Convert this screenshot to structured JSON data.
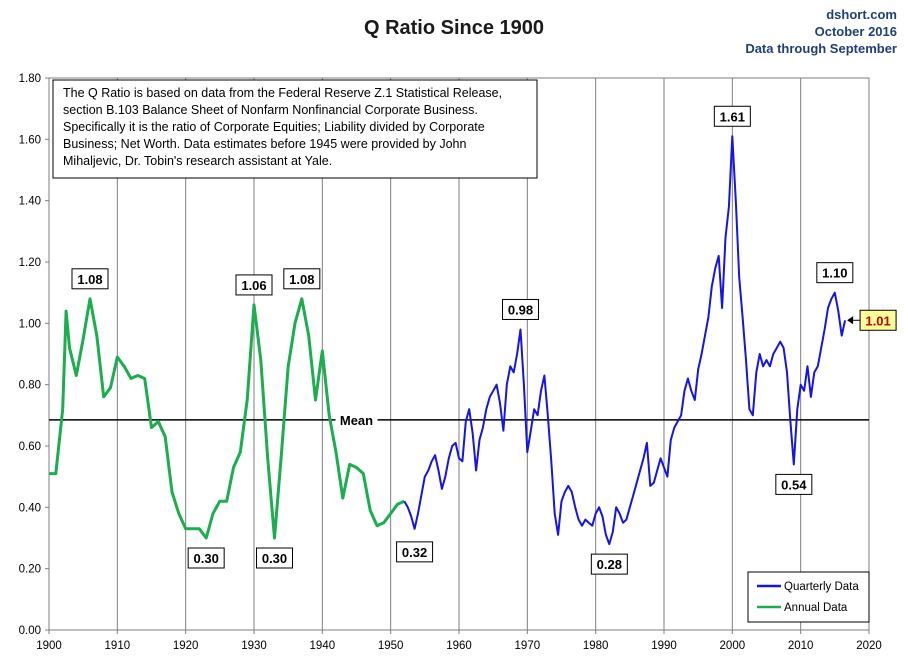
{
  "header": {
    "title": "Q Ratio Since 1900",
    "source": "dshort.com",
    "date": "October 2016",
    "through": "Data through September"
  },
  "note": {
    "lines": [
      "The Q Ratio is based on data from the Federal Reserve Z.1 Statistical Release,",
      "section B.103 Balance Sheet of Nonfarm Nonfinancial Corporate Business.",
      "Specifically it is the ratio  of Corporate Equities; Liability divided by Corporate",
      "Business; Net Worth.  Data estimates before 1945 were provided by John",
      "Mihaljevic, Dr. Tobin's research assistant at Yale."
    ]
  },
  "colors": {
    "annual": "#1aae4e",
    "quarterly": "#1414e6",
    "mean_line": "#000000",
    "grid": "#7f7f7f",
    "latest_highlight": "#ffff99"
  },
  "chart_data": {
    "type": "line",
    "title": "Q Ratio Since 1900",
    "xlim": [
      1900,
      2020
    ],
    "ylim": [
      0,
      1.8
    ],
    "x_ticks": [
      "1900",
      "1910",
      "1920",
      "1930",
      "1940",
      "1950",
      "1960",
      "1970",
      "1980",
      "1990",
      "2000",
      "2010",
      "2020"
    ],
    "y_ticks": [
      "0.00",
      "0.20",
      "0.40",
      "0.60",
      "0.80",
      "1.00",
      "1.20",
      "1.40",
      "1.60",
      "1.80"
    ],
    "grid": "vertical",
    "legend_position": "bottom-right",
    "mean": {
      "label": "Mean",
      "value": 0.685
    },
    "series": [
      {
        "name": "Annual Data",
        "color": "#1aae4e",
        "points": [
          [
            1900,
            0.51
          ],
          [
            1901,
            0.51
          ],
          [
            1902,
            0.72
          ],
          [
            1902.5,
            1.04
          ],
          [
            1903,
            0.92
          ],
          [
            1904,
            0.83
          ],
          [
            1905,
            0.95
          ],
          [
            1906,
            1.08
          ],
          [
            1907,
            0.96
          ],
          [
            1908,
            0.76
          ],
          [
            1909,
            0.79
          ],
          [
            1910,
            0.89
          ],
          [
            1911,
            0.86
          ],
          [
            1912,
            0.82
          ],
          [
            1913,
            0.83
          ],
          [
            1914,
            0.82
          ],
          [
            1915,
            0.66
          ],
          [
            1916,
            0.68
          ],
          [
            1917,
            0.63
          ],
          [
            1918,
            0.45
          ],
          [
            1919,
            0.38
          ],
          [
            1920,
            0.33
          ],
          [
            1921,
            0.33
          ],
          [
            1922,
            0.33
          ],
          [
            1923,
            0.3
          ],
          [
            1924,
            0.38
          ],
          [
            1925,
            0.42
          ],
          [
            1926,
            0.42
          ],
          [
            1927,
            0.53
          ],
          [
            1928,
            0.58
          ],
          [
            1929,
            0.75
          ],
          [
            1930,
            1.06
          ],
          [
            1931,
            0.88
          ],
          [
            1932,
            0.56
          ],
          [
            1933,
            0.3
          ],
          [
            1934,
            0.57
          ],
          [
            1935,
            0.86
          ],
          [
            1936,
            1.0
          ],
          [
            1937,
            1.08
          ],
          [
            1938,
            0.96
          ],
          [
            1939,
            0.75
          ],
          [
            1940,
            0.91
          ],
          [
            1941,
            0.7
          ],
          [
            1942,
            0.58
          ],
          [
            1943,
            0.43
          ],
          [
            1944,
            0.54
          ],
          [
            1945,
            0.53
          ],
          [
            1946,
            0.51
          ],
          [
            1947,
            0.39
          ],
          [
            1948,
            0.34
          ],
          [
            1949,
            0.35
          ],
          [
            1950,
            0.38
          ],
          [
            1951,
            0.41
          ],
          [
            1952,
            0.42
          ]
        ]
      },
      {
        "name": "Quarterly Data",
        "color": "#1414e6",
        "points": [
          [
            1952,
            0.42
          ],
          [
            1952.5,
            0.4
          ],
          [
            1953,
            0.37
          ],
          [
            1953.5,
            0.33
          ],
          [
            1954,
            0.38
          ],
          [
            1954.5,
            0.44
          ],
          [
            1955,
            0.5
          ],
          [
            1955.5,
            0.52
          ],
          [
            1956,
            0.55
          ],
          [
            1956.5,
            0.57
          ],
          [
            1957,
            0.52
          ],
          [
            1957.5,
            0.46
          ],
          [
            1958,
            0.5
          ],
          [
            1958.5,
            0.56
          ],
          [
            1959,
            0.6
          ],
          [
            1959.5,
            0.61
          ],
          [
            1960,
            0.56
          ],
          [
            1960.5,
            0.55
          ],
          [
            1961,
            0.68
          ],
          [
            1961.5,
            0.72
          ],
          [
            1962,
            0.64
          ],
          [
            1962.5,
            0.52
          ],
          [
            1963,
            0.62
          ],
          [
            1963.5,
            0.66
          ],
          [
            1964,
            0.72
          ],
          [
            1964.5,
            0.76
          ],
          [
            1965,
            0.78
          ],
          [
            1965.5,
            0.8
          ],
          [
            1966,
            0.74
          ],
          [
            1966.5,
            0.65
          ],
          [
            1967,
            0.8
          ],
          [
            1967.5,
            0.86
          ],
          [
            1968,
            0.84
          ],
          [
            1968.5,
            0.9
          ],
          [
            1969,
            0.98
          ],
          [
            1969.5,
            0.8
          ],
          [
            1970,
            0.58
          ],
          [
            1970.5,
            0.65
          ],
          [
            1971,
            0.72
          ],
          [
            1971.5,
            0.7
          ],
          [
            1972,
            0.78
          ],
          [
            1972.5,
            0.83
          ],
          [
            1973,
            0.7
          ],
          [
            1973.5,
            0.55
          ],
          [
            1974,
            0.38
          ],
          [
            1974.5,
            0.31
          ],
          [
            1975,
            0.42
          ],
          [
            1975.5,
            0.45
          ],
          [
            1976,
            0.47
          ],
          [
            1976.5,
            0.45
          ],
          [
            1977,
            0.4
          ],
          [
            1977.5,
            0.36
          ],
          [
            1978,
            0.34
          ],
          [
            1978.5,
            0.36
          ],
          [
            1979,
            0.35
          ],
          [
            1979.5,
            0.34
          ],
          [
            1980,
            0.38
          ],
          [
            1980.5,
            0.4
          ],
          [
            1981,
            0.37
          ],
          [
            1981.5,
            0.31
          ],
          [
            1982,
            0.28
          ],
          [
            1982.5,
            0.32
          ],
          [
            1983,
            0.4
          ],
          [
            1983.5,
            0.38
          ],
          [
            1984,
            0.35
          ],
          [
            1984.5,
            0.36
          ],
          [
            1985,
            0.4
          ],
          [
            1985.5,
            0.44
          ],
          [
            1986,
            0.48
          ],
          [
            1986.5,
            0.52
          ],
          [
            1987,
            0.56
          ],
          [
            1987.5,
            0.61
          ],
          [
            1988,
            0.47
          ],
          [
            1988.5,
            0.48
          ],
          [
            1989,
            0.52
          ],
          [
            1989.5,
            0.56
          ],
          [
            1990,
            0.53
          ],
          [
            1990.5,
            0.5
          ],
          [
            1991,
            0.62
          ],
          [
            1991.5,
            0.66
          ],
          [
            1992,
            0.68
          ],
          [
            1992.5,
            0.7
          ],
          [
            1993,
            0.78
          ],
          [
            1993.5,
            0.82
          ],
          [
            1994,
            0.78
          ],
          [
            1994.5,
            0.75
          ],
          [
            1995,
            0.85
          ],
          [
            1995.5,
            0.9
          ],
          [
            1996,
            0.96
          ],
          [
            1996.5,
            1.02
          ],
          [
            1997,
            1.12
          ],
          [
            1997.5,
            1.18
          ],
          [
            1998,
            1.22
          ],
          [
            1998.5,
            1.05
          ],
          [
            1999,
            1.28
          ],
          [
            1999.5,
            1.38
          ],
          [
            2000,
            1.61
          ],
          [
            2000.5,
            1.4
          ],
          [
            2001,
            1.15
          ],
          [
            2001.5,
            1.02
          ],
          [
            2002,
            0.88
          ],
          [
            2002.5,
            0.72
          ],
          [
            2003,
            0.7
          ],
          [
            2003.5,
            0.84
          ],
          [
            2004,
            0.9
          ],
          [
            2004.5,
            0.86
          ],
          [
            2005,
            0.88
          ],
          [
            2005.5,
            0.86
          ],
          [
            2006,
            0.9
          ],
          [
            2006.5,
            0.92
          ],
          [
            2007,
            0.94
          ],
          [
            2007.5,
            0.92
          ],
          [
            2008,
            0.84
          ],
          [
            2008.5,
            0.68
          ],
          [
            2009,
            0.54
          ],
          [
            2009.5,
            0.72
          ],
          [
            2010,
            0.8
          ],
          [
            2010.5,
            0.78
          ],
          [
            2011,
            0.86
          ],
          [
            2011.5,
            0.76
          ],
          [
            2012,
            0.84
          ],
          [
            2012.5,
            0.86
          ],
          [
            2013,
            0.92
          ],
          [
            2013.5,
            0.98
          ],
          [
            2014,
            1.05
          ],
          [
            2014.5,
            1.08
          ],
          [
            2015,
            1.1
          ],
          [
            2015.5,
            1.04
          ],
          [
            2016,
            0.96
          ],
          [
            2016.5,
            1.01
          ]
        ]
      }
    ],
    "annotations": [
      {
        "label": "1.08",
        "x": 1906,
        "y": 1.08
      },
      {
        "label": "1.06",
        "x": 1930,
        "y": 1.06
      },
      {
        "label": "1.08",
        "x": 1937,
        "y": 1.08
      },
      {
        "label": "0.30",
        "x": 1923,
        "y": 0.3
      },
      {
        "label": "0.30",
        "x": 1933,
        "y": 0.3
      },
      {
        "label": "0.32",
        "x": 1953.5,
        "y": 0.32
      },
      {
        "label": "0.98",
        "x": 1969,
        "y": 0.98
      },
      {
        "label": "0.28",
        "x": 1982,
        "y": 0.28
      },
      {
        "label": "1.61",
        "x": 2000,
        "y": 1.61
      },
      {
        "label": "0.54",
        "x": 2009,
        "y": 0.54
      },
      {
        "label": "1.10",
        "x": 2015,
        "y": 1.1
      },
      {
        "label": "1.01",
        "x": 2016.5,
        "y": 1.01,
        "highlight": true
      }
    ]
  }
}
